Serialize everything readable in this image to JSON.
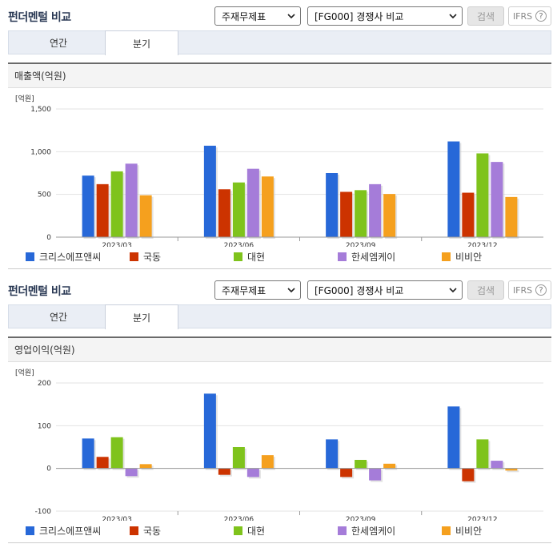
{
  "panels": [
    {
      "title": "펀더멘털 비교",
      "select_1": "주재무제표",
      "select_2": "[FG000] 경쟁사 비교",
      "search_label": "검색",
      "ifrs_label": "IFRS",
      "help_glyph": "?",
      "tabs": [
        {
          "label": "연간",
          "active": false
        },
        {
          "label": "분기",
          "active": true
        }
      ],
      "section_title": "매출액(억원)"
    },
    {
      "title": "펀더멘털 비교",
      "select_1": "주재무제표",
      "select_2": "[FG000] 경쟁사 비교",
      "search_label": "검색",
      "ifrs_label": "IFRS",
      "help_glyph": "?",
      "tabs": [
        {
          "label": "연간",
          "active": false
        },
        {
          "label": "분기",
          "active": true
        }
      ],
      "section_title": "영업이익(억원)"
    }
  ],
  "icons": {
    "caret": "chevron-down-icon",
    "help": "question-circle-icon"
  },
  "chart_data": [
    {
      "type": "bar",
      "ylabel": "[억원]",
      "ylim": [
        0,
        1500
      ],
      "yticks": [
        0,
        500,
        1000,
        1500
      ],
      "ytick_labels": [
        "0",
        "500",
        "1,000",
        "1,500"
      ],
      "grid": true,
      "legend_position": "bottom",
      "categories": [
        "2023/03",
        "2023/06",
        "2023/09",
        "2023/12"
      ],
      "series": [
        {
          "name": "크리스에프앤씨",
          "color": "#2768d8",
          "values": [
            720,
            1070,
            750,
            1120
          ]
        },
        {
          "name": "국동",
          "color": "#cc3300",
          "values": [
            620,
            560,
            530,
            520
          ]
        },
        {
          "name": "대현",
          "color": "#7fc31c",
          "values": [
            770,
            640,
            550,
            980
          ]
        },
        {
          "name": "한세엠케이",
          "color": "#a57cd9",
          "values": [
            860,
            800,
            620,
            880
          ]
        },
        {
          "name": "비비안",
          "color": "#f5a01e",
          "values": [
            490,
            710,
            505,
            470
          ]
        }
      ]
    },
    {
      "type": "bar",
      "ylabel": "[억원]",
      "ylim": [
        -100,
        200
      ],
      "yticks": [
        -100,
        0,
        100,
        200
      ],
      "ytick_labels": [
        "-100",
        "0",
        "100",
        "200"
      ],
      "grid": true,
      "legend_position": "bottom",
      "categories": [
        "2023/03",
        "2023/06",
        "2023/09",
        "2023/12"
      ],
      "series": [
        {
          "name": "크리스에프앤씨",
          "color": "#2768d8",
          "values": [
            70,
            175,
            68,
            145
          ]
        },
        {
          "name": "국동",
          "color": "#cc3300",
          "values": [
            27,
            -15,
            -20,
            -30
          ]
        },
        {
          "name": "대현",
          "color": "#7fc31c",
          "values": [
            73,
            50,
            20,
            68
          ]
        },
        {
          "name": "한세엠케이",
          "color": "#a57cd9",
          "values": [
            -18,
            -20,
            -28,
            18
          ]
        },
        {
          "name": "비비안",
          "color": "#f5a01e",
          "values": [
            10,
            31,
            11,
            -5
          ]
        }
      ]
    }
  ]
}
